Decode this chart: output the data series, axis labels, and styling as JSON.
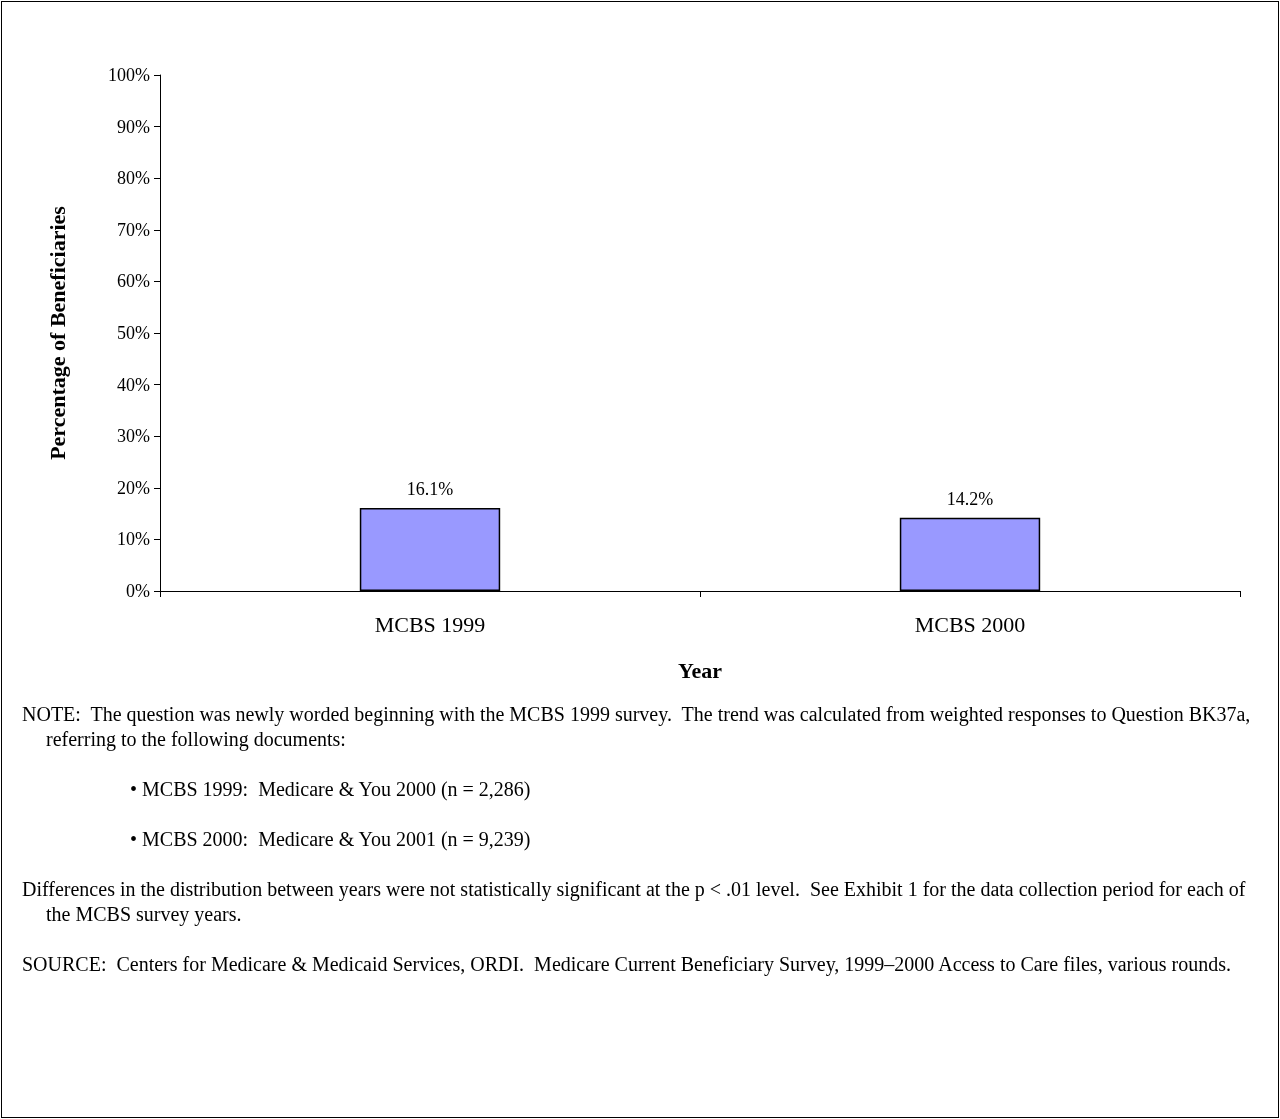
{
  "chart_data": {
    "type": "bar",
    "categories": [
      "MCBS 1999",
      "MCBS 2000"
    ],
    "values": [
      16.1,
      14.2
    ],
    "value_labels": [
      "16.1%",
      "14.2%"
    ],
    "color": "#9999ff",
    "ylim": [
      0,
      100
    ],
    "yticks": [
      {
        "value": 0,
        "label": "0%"
      },
      {
        "value": 10,
        "label": "10%"
      },
      {
        "value": 20,
        "label": "20%"
      },
      {
        "value": 30,
        "label": "30%"
      },
      {
        "value": 40,
        "label": "40%"
      },
      {
        "value": 50,
        "label": "50%"
      },
      {
        "value": 60,
        "label": "60%"
      },
      {
        "value": 70,
        "label": "70%"
      },
      {
        "value": 80,
        "label": "80%"
      },
      {
        "value": 90,
        "label": "90%"
      },
      {
        "value": 100,
        "label": "100%"
      }
    ],
    "xlabel": "Year",
    "ylabel": "Percentage of Beneficiaries",
    "grid": false,
    "annotations": [
      "NOTE:  The question was newly worded beginning with the MCBS 1999 survey.  The trend was calculated from weighted responses to Question BK37a, referring to the following documents:",
      "• MCBS 1999:  Medicare & You 2000 (n = 2,286)",
      "• MCBS 2000:  Medicare & You 2001 (n = 9,239)",
      "Differences in the distribution between years were not statistically significant at the p < .01 level.  See Exhibit 1 for the data collection period for each of the MCBS survey years.",
      "SOURCE:  Centers for Medicare & Medicaid Services, ORDI.  Medicare Current Beneficiary Survey, 1999–2000 Access to Care files, various rounds."
    ]
  }
}
